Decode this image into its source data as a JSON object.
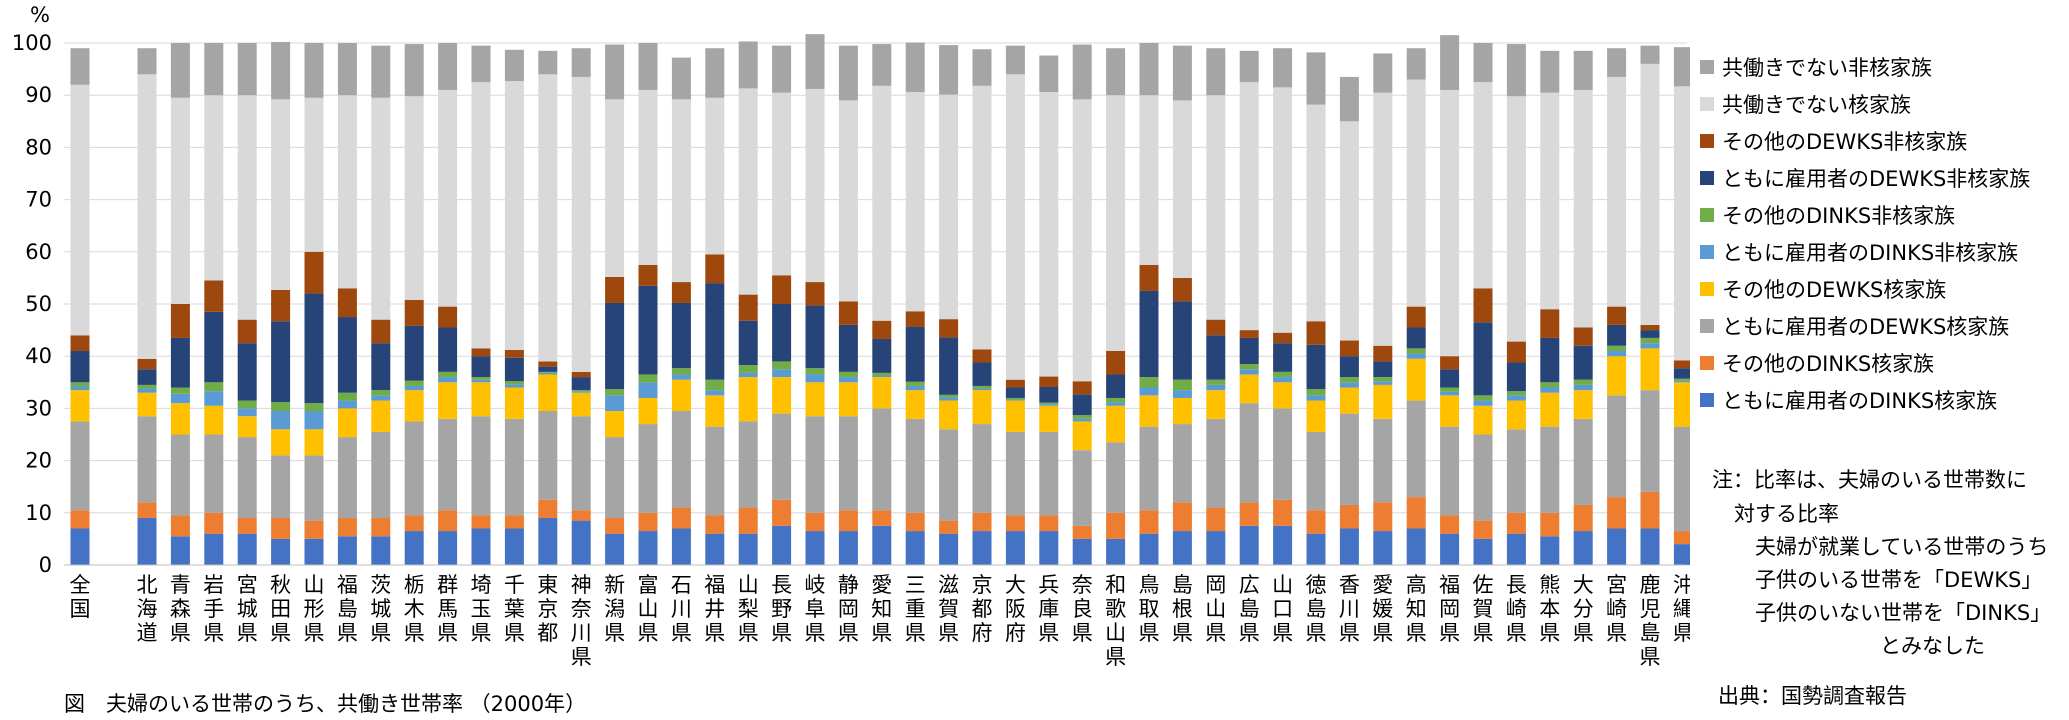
{
  "chart_data": {
    "type": "bar",
    "stacked": true,
    "title": "図　夫婦のいる世帯のうち、共働き世帯率 （2000年）",
    "ylabel": "%",
    "ylim": [
      0,
      100
    ],
    "yticks": [
      0,
      10,
      20,
      30,
      40,
      50,
      60,
      70,
      80,
      90,
      100
    ],
    "grid": true,
    "legend_position": "right",
    "categories": [
      "全国",
      "北海道",
      "青森県",
      "岩手県",
      "宮城県",
      "秋田県",
      "山形県",
      "福島県",
      "茨城県",
      "栃木県",
      "群馬県",
      "埼玉県",
      "千葉県",
      "東京都",
      "神奈川県",
      "新潟県",
      "富山県",
      "石川県",
      "福井県",
      "山梨県",
      "長野県",
      "岐阜県",
      "静岡県",
      "愛知県",
      "三重県",
      "滋賀県",
      "京都府",
      "大阪府",
      "兵庫県",
      "奈良県",
      "和歌山県",
      "鳥取県",
      "島根県",
      "岡山県",
      "広島県",
      "山口県",
      "徳島県",
      "香川県",
      "愛媛県",
      "高知県",
      "福岡県",
      "佐賀県",
      "長崎県",
      "熊本県",
      "大分県",
      "宮崎県",
      "鹿児島県",
      "沖縄県"
    ],
    "series": [
      {
        "name": "ともに雇用者のDINKS核家族",
        "color": "#4472c4",
        "values": [
          7,
          9,
          5.5,
          6,
          6,
          5,
          5,
          5.5,
          5.5,
          6.5,
          6.5,
          7,
          7,
          9,
          8.5,
          6,
          6.5,
          7,
          6,
          6,
          7.5,
          6.5,
          6.5,
          7.5,
          6.5,
          6,
          6.5,
          6.5,
          6.5,
          5,
          5,
          6,
          6.5,
          6.5,
          7.5,
          7.5,
          6,
          7,
          6.5,
          7,
          6,
          5,
          6,
          5.5,
          6.5,
          7,
          7,
          4
        ]
      },
      {
        "name": "その他のDINKS核家族",
        "color": "#ed7d31",
        "values": [
          3.5,
          3,
          4,
          4,
          3,
          4,
          3.5,
          3.5,
          3.5,
          3,
          4,
          2.5,
          2.5,
          3.5,
          2,
          3,
          3.5,
          4,
          3.5,
          5,
          5,
          3.5,
          4,
          3,
          3.5,
          2.5,
          3.5,
          3,
          3,
          2.5,
          5,
          4.5,
          5.5,
          4.5,
          4.5,
          5,
          4.5,
          4.5,
          5.5,
          6,
          3.5,
          3.5,
          4,
          4.5,
          5,
          6,
          7,
          2.5
        ]
      },
      {
        "name": "ともに雇用者のDEWKS核家族",
        "color": "#a5a5a5",
        "values": [
          17,
          16.5,
          15.5,
          15,
          15.5,
          12,
          12.5,
          15.5,
          16.5,
          18,
          17.5,
          19,
          18.5,
          17,
          18,
          15.5,
          17,
          18.5,
          17,
          16.5,
          16.5,
          18.5,
          18,
          19.5,
          18,
          17.5,
          17,
          16,
          16,
          14.5,
          13.5,
          16,
          15,
          17,
          19,
          17.5,
          15,
          17.5,
          16,
          18.5,
          17,
          16.5,
          16,
          16.5,
          16.5,
          19.5,
          19.5,
          20
        ]
      },
      {
        "name": "その他のDEWKS核家族",
        "color": "#ffc000",
        "values": [
          6,
          4.5,
          6,
          5.5,
          4,
          5,
          5,
          5.5,
          6,
          6,
          7,
          6.5,
          6,
          7,
          4.5,
          5,
          5,
          6,
          6,
          8.5,
          7,
          6.5,
          6.5,
          6,
          5.5,
          5.5,
          6.5,
          6,
          5,
          5.5,
          7,
          6,
          5,
          5.5,
          5.5,
          5,
          6,
          5,
          6.5,
          8,
          6,
          5.5,
          5.5,
          6.5,
          5.5,
          7.5,
          8,
          8.5
        ]
      },
      {
        "name": "ともに雇用者のDINKS非核家族",
        "color": "#5b9bd5",
        "values": [
          0.7,
          0.8,
          1.8,
          2.8,
          1.5,
          3.5,
          3.5,
          1.5,
          1,
          0.8,
          1,
          0.5,
          0.6,
          0.3,
          0.3,
          3,
          3,
          1,
          1,
          0.8,
          1.5,
          1.5,
          1,
          0.3,
          0.8,
          0.6,
          0.3,
          0.2,
          0.3,
          0.5,
          0.7,
          1.5,
          1.5,
          1,
          1,
          1,
          1,
          1,
          0.7,
          1,
          0.7,
          1,
          1,
          1,
          1,
          1,
          1,
          0.3
        ]
      },
      {
        "name": "その他のDINKS非核家族",
        "color": "#70ad47",
        "values": [
          0.8,
          0.7,
          1.2,
          1.7,
          1.5,
          1.7,
          1.5,
          1.5,
          1,
          1,
          1,
          0.5,
          0.6,
          0.2,
          0.2,
          1.2,
          1.5,
          1.2,
          2,
          1.5,
          1.5,
          1.2,
          1,
          0.5,
          0.8,
          0.5,
          0.5,
          0.3,
          0.3,
          0.7,
          0.8,
          2,
          2,
          1,
          1,
          1,
          1.2,
          1,
          0.8,
          1,
          0.8,
          1,
          0.8,
          1,
          1,
          1,
          1,
          0.4
        ]
      },
      {
        "name": "ともに雇用者のDEWKS非核家族",
        "color": "#264478",
        "values": [
          6,
          3,
          9.5,
          13.5,
          11,
          15.5,
          21,
          14.5,
          9,
          10.5,
          8.5,
          4,
          4.5,
          1,
          2.5,
          16.5,
          17,
          12.5,
          18.5,
          8.5,
          11,
          12,
          9,
          6.5,
          10.5,
          11,
          4.5,
          2,
          3,
          4,
          4.5,
          16.5,
          15,
          8.5,
          5,
          5.5,
          8.5,
          4,
          3,
          4,
          3.5,
          14,
          5.5,
          8.5,
          6.5,
          4,
          1.5,
          2
        ]
      },
      {
        "name": "その他のDEWKS非核家族",
        "color": "#9e480e",
        "values": [
          3,
          2,
          6.5,
          6,
          4.5,
          6,
          8,
          5.5,
          4.5,
          5,
          4,
          1.5,
          1.5,
          1,
          1,
          5,
          4,
          4,
          5.5,
          5,
          5.5,
          4.5,
          4.5,
          3.5,
          3,
          3.5,
          2.5,
          1.5,
          2,
          2.5,
          4.5,
          5,
          4.5,
          3,
          1.5,
          2,
          4.5,
          3,
          3,
          4,
          2.5,
          6.5,
          4,
          5.5,
          3.5,
          3.5,
          1,
          1.5
        ]
      },
      {
        "name": "共働きでない核家族",
        "color": "#d9d9d9",
        "values": [
          48,
          54.5,
          39.5,
          35.5,
          43,
          36.5,
          29.5,
          37,
          42.5,
          39,
          41.5,
          51,
          51.5,
          55,
          56.5,
          34,
          33.5,
          35,
          30,
          39.5,
          35,
          37,
          38.5,
          45,
          42,
          43,
          50.5,
          58.5,
          54.5,
          54,
          49,
          32.5,
          34,
          43,
          47.5,
          47,
          41.5,
          42,
          48.5,
          43.5,
          51,
          39.5,
          47,
          41.5,
          45.5,
          44,
          50,
          52.5
        ]
      },
      {
        "name": "共働きでない非核家族",
        "color": "#a5a5a5",
        "values": [
          7,
          5,
          10.5,
          10,
          10,
          11,
          10.5,
          10,
          10,
          10,
          9,
          7,
          6,
          4.5,
          5.5,
          10.5,
          9,
          8,
          9.5,
          9,
          9,
          10.5,
          10.5,
          8,
          9.5,
          9.5,
          7,
          5.5,
          7,
          10.5,
          9,
          10,
          10.5,
          9,
          6,
          7.5,
          10,
          8.5,
          7.5,
          6,
          10.5,
          7.5,
          10,
          8,
          7.5,
          5.5,
          3.5,
          7.5
        ]
      }
    ],
    "category_labels_display": [
      "全国",
      "北海道",
      "青森県",
      "岩手県",
      "宮城県",
      "秋田県",
      "山形県",
      "福島県",
      "茨城県",
      "栃木県",
      "群馬県",
      "埼玉県",
      "千葉県",
      "東京都",
      "神奈川県",
      "新潟県",
      "富山県",
      "石川県",
      "福井県",
      "山梨県",
      "長野県",
      "岐阜県",
      "静岡県",
      "愛知県",
      "三重県",
      "滋賀県",
      "京都府",
      "大阪府",
      "兵庫県",
      "奈良県",
      "和歌山県",
      "鳥取県",
      "島根県",
      "岡山県",
      "広島県",
      "山口県",
      "徳島県",
      "香川県",
      "愛媛県",
      "高知県",
      "福岡県",
      "佐賀県",
      "長崎県",
      "熊本県",
      "大分県",
      "宮崎県",
      "鹿児島県",
      "沖縄県"
    ]
  },
  "legend_items": [
    "共働きでない非核家族",
    "共働きでない核家族",
    "その他のDEWKS非核家族",
    "ともに雇用者のDEWKS非核家族",
    "その他のDINKS非核家族",
    "ともに雇用者のDINKS非核家族",
    "その他のDEWKS核家族",
    "ともに雇用者のDEWKS核家族",
    "その他のDINKS核家族",
    "ともに雇用者のDINKS核家族"
  ],
  "legend_colors": [
    "#a5a5a5",
    "#d9d9d9",
    "#9e480e",
    "#264478",
    "#70ad47",
    "#5b9bd5",
    "#ffc000",
    "#a5a5a5",
    "#ed7d31",
    "#4472c4"
  ],
  "note": {
    "line1": "注：比率は、夫婦のいる世帯数に",
    "line2": "対する比率",
    "line3": "夫婦が就業している世帯のうち",
    "line4": "子供のいる世帯を「DEWKS」",
    "line5": "子供のいない世帯を「DINKS」",
    "line6": "とみなした"
  },
  "source": "出典：国勢調査報告",
  "caption": "図　夫婦のいる世帯のうち、共働き世帯率 （2000年）",
  "unit": "%"
}
